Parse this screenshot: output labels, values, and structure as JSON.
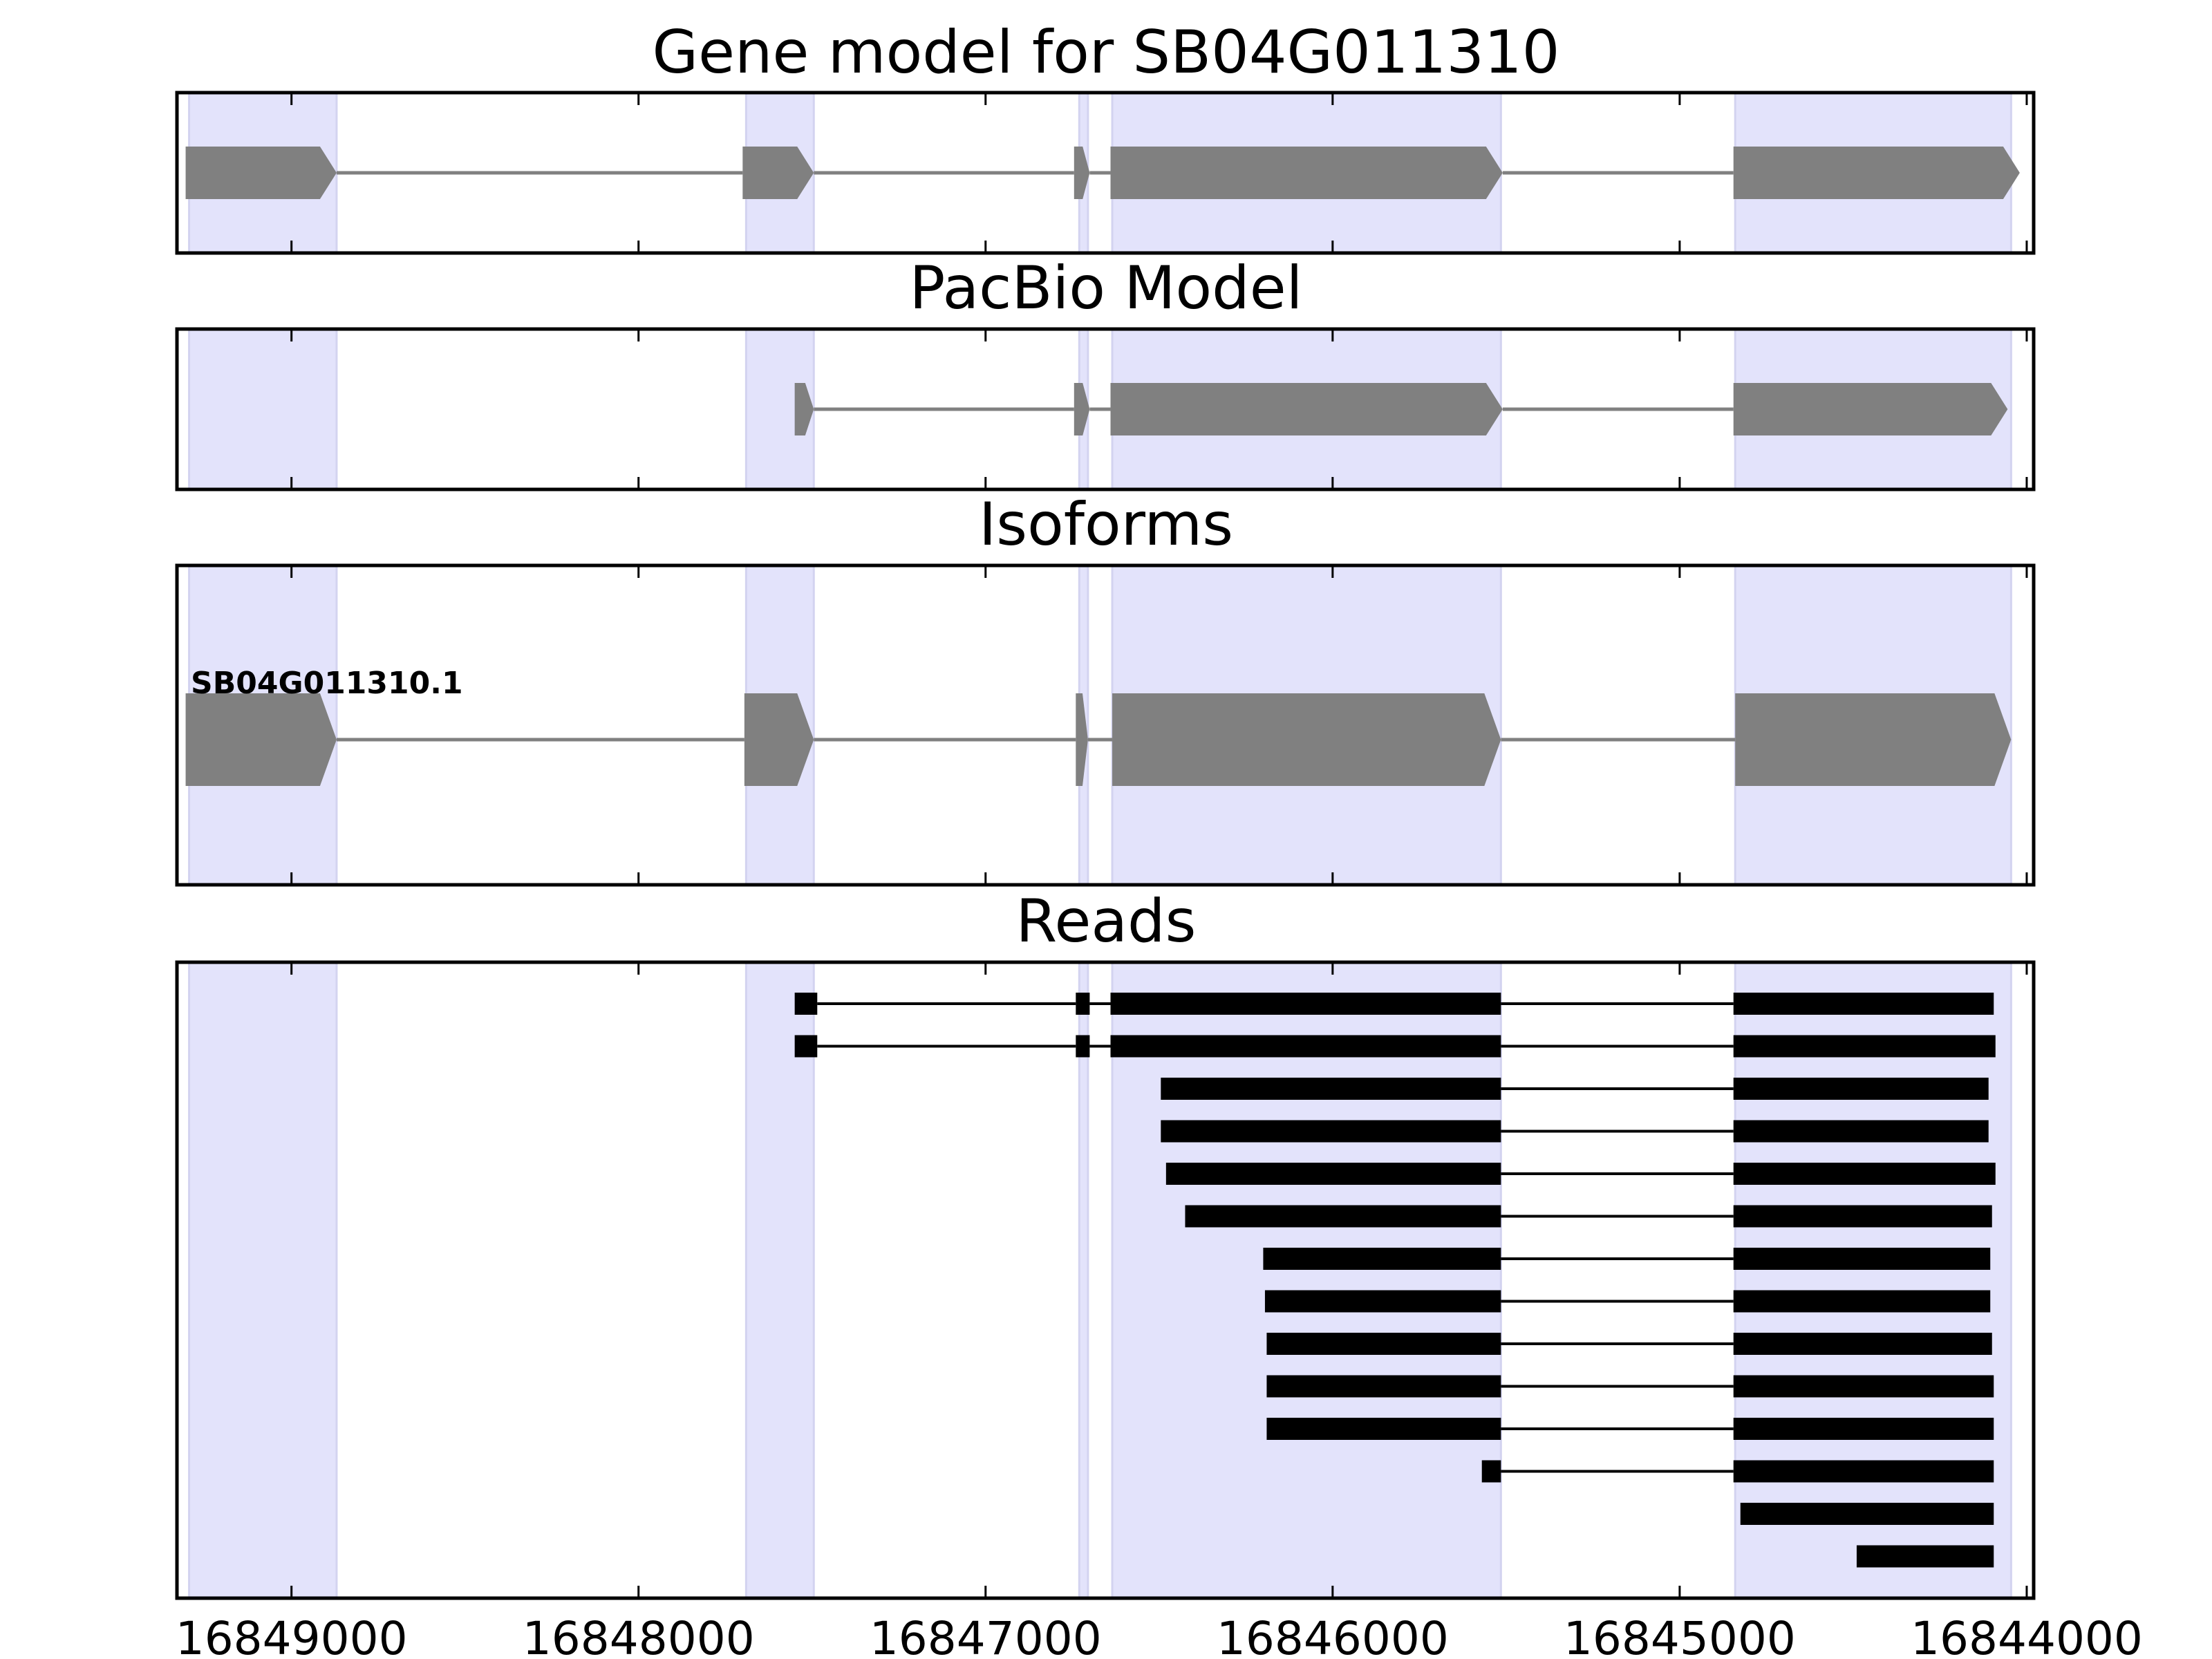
{
  "chart_data": {
    "type": "gene-model-tracks",
    "x_axis": {
      "min": 16849330,
      "max": 16843980,
      "reversed": true,
      "ticks": [
        16849000,
        16848000,
        16847000,
        16846000,
        16845000,
        16844000
      ],
      "tick_labels": [
        "16849000",
        "16848000",
        "16847000",
        "16846000",
        "16845000",
        "16844000"
      ]
    },
    "colors": {
      "highlight": "#e3e3fb",
      "highlight_edge": "#d3d3f0",
      "model_fill": "#808080",
      "read_fill": "#000000",
      "frame": "#000000"
    },
    "highlight_regions": [
      [
        16849295,
        16848870
      ],
      [
        16847690,
        16847495
      ],
      [
        16846730,
        16846705
      ],
      [
        16846635,
        16845515
      ],
      [
        16844840,
        16844045
      ]
    ],
    "panels": [
      {
        "id": "gene-model",
        "title": "Gene model for SB04G011310",
        "strand": "-",
        "exons": [
          [
            16849305,
            16848870
          ],
          [
            16847700,
            16847495
          ],
          [
            16846745,
            16846700
          ],
          [
            16846640,
            16845510
          ],
          [
            16844845,
            16844020
          ]
        ]
      },
      {
        "id": "pacbio-model",
        "title": "PacBio Model",
        "strand": "-",
        "exons": [
          [
            16847550,
            16847495
          ],
          [
            16846745,
            16846700
          ],
          [
            16846640,
            16845510
          ],
          [
            16844845,
            16844055
          ]
        ]
      },
      {
        "id": "isoforms",
        "title": "Isoforms",
        "strand": "-",
        "isoform_label": "SB04G011310.1",
        "exons": [
          [
            16849305,
            16848870
          ],
          [
            16847695,
            16847495
          ],
          [
            16846740,
            16846705
          ],
          [
            16846635,
            16845515
          ],
          [
            16844840,
            16844045
          ]
        ]
      }
    ],
    "reads_panel": {
      "id": "reads",
      "title": "Reads",
      "reads": [
        [
          [
            16847550,
            16847485
          ],
          [
            16846740,
            16846700
          ],
          [
            16846640,
            16845515
          ],
          [
            16844845,
            16844095
          ]
        ],
        [
          [
            16847550,
            16847485
          ],
          [
            16846740,
            16846700
          ],
          [
            16846640,
            16845515
          ],
          [
            16844845,
            16844090
          ]
        ],
        [
          [
            16846495,
            16845515
          ],
          [
            16844845,
            16844110
          ]
        ],
        [
          [
            16846495,
            16845515
          ],
          [
            16844845,
            16844110
          ]
        ],
        [
          [
            16846480,
            16845515
          ],
          [
            16844845,
            16844090
          ]
        ],
        [
          [
            16846425,
            16845515
          ],
          [
            16844845,
            16844100
          ]
        ],
        [
          [
            16846200,
            16845515
          ],
          [
            16844845,
            16844105
          ]
        ],
        [
          [
            16846195,
            16845515
          ],
          [
            16844845,
            16844105
          ]
        ],
        [
          [
            16846190,
            16845515
          ],
          [
            16844845,
            16844100
          ]
        ],
        [
          [
            16846190,
            16845515
          ],
          [
            16844845,
            16844095
          ]
        ],
        [
          [
            16846190,
            16845515
          ],
          [
            16844845,
            16844095
          ]
        ],
        [
          [
            16845570,
            16845515
          ],
          [
            16844845,
            16844095
          ]
        ],
        [
          [
            16844825,
            16844095
          ]
        ],
        [
          [
            16844490,
            16844095
          ]
        ]
      ]
    }
  }
}
